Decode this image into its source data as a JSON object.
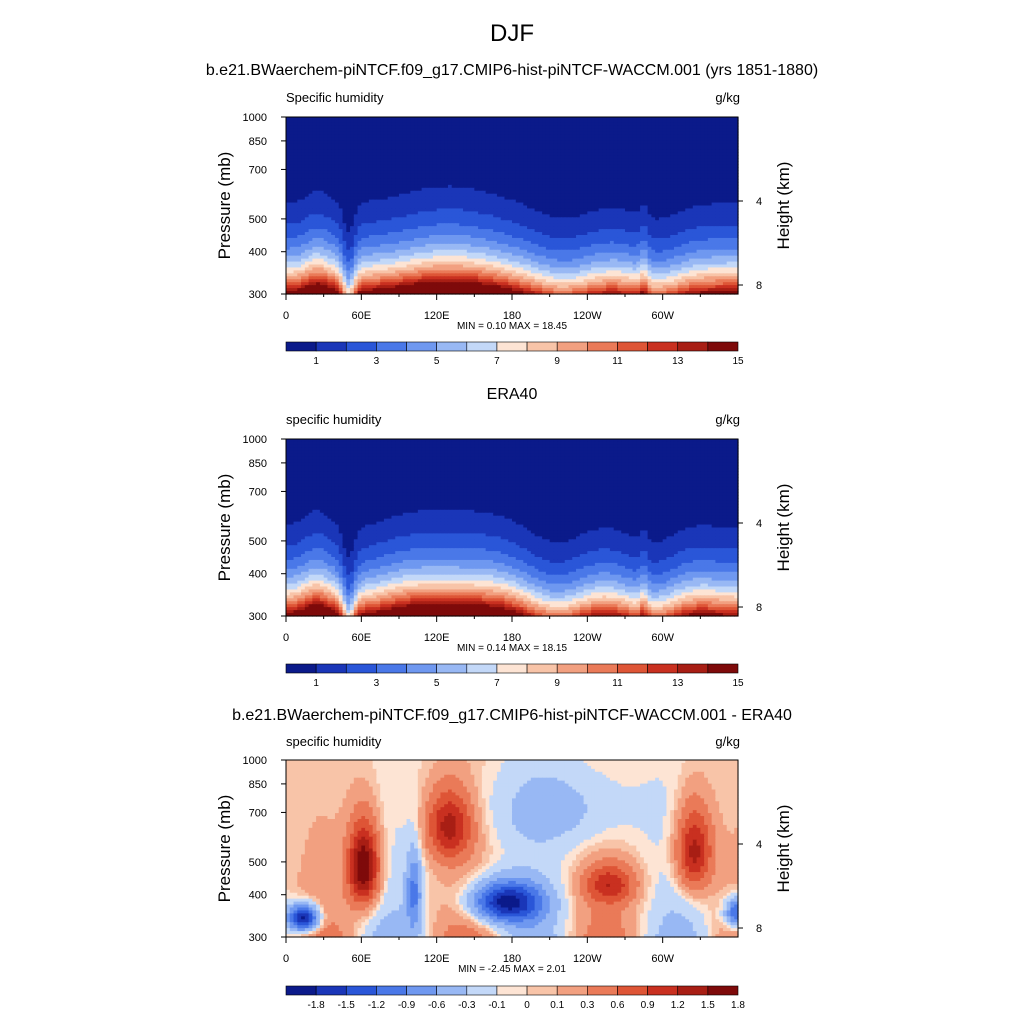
{
  "figure": {
    "title": "DJF",
    "colors": {
      "seq": [
        "#0b1a8a",
        "#1a36b8",
        "#2a56d8",
        "#4a78e8",
        "#6f98f0",
        "#98b8f4",
        "#c3d8f8",
        "#fde4d4",
        "#f8c4a8",
        "#f2a080",
        "#ea7a58",
        "#de5536",
        "#c93020",
        "#a81e14",
        "#7e0a0a"
      ],
      "diff": [
        "#0b1a8a",
        "#1a36b8",
        "#2a56d8",
        "#4a78e8",
        "#6f98f0",
        "#98b8f4",
        "#c3d8f8",
        "#fde4d4",
        "#f8c4a8",
        "#f2a080",
        "#ea7a58",
        "#de5536",
        "#c93020",
        "#a81e14",
        "#7e0a0a"
      ],
      "land": "#000000"
    }
  },
  "chart_data": [
    {
      "type": "heatmap",
      "title": "b.e21.BWaerchem-piNTCF.f09_g17.CMIP6-hist-piNTCF-WACCM.001 (yrs 1851-1880)",
      "left_label": "Specific humidity",
      "units": "g/kg",
      "ylabel": "Pressure (mb)",
      "ylabel_right": "Height (km)",
      "y_ticks": [
        "300",
        "400",
        "500",
        "700",
        "850",
        "1000"
      ],
      "y_tick_values": [
        300,
        400,
        500,
        700,
        850,
        1000
      ],
      "right_ticks": [
        "8",
        "4"
      ],
      "right_tick_values": [
        8,
        4
      ],
      "x_ticks": [
        "0",
        "60E",
        "120E",
        "180",
        "120W",
        "60W"
      ],
      "x_tick_values": [
        0,
        60,
        120,
        180,
        240,
        300
      ],
      "xlim": [
        0,
        360
      ],
      "ylim": [
        300,
        1000
      ],
      "min_max": "MIN =   0.10  MAX =  18.45",
      "colorbar_labels": [
        "1",
        "3",
        "5",
        "7",
        "9",
        "11",
        "13",
        "15"
      ],
      "field": "specific_humidity",
      "has_land": true
    },
    {
      "type": "heatmap",
      "title": "ERA40",
      "left_label": "specific humidity",
      "units": "g/kg",
      "ylabel": "Pressure (mb)",
      "ylabel_right": "Height (km)",
      "y_ticks": [
        "300",
        "400",
        "500",
        "700",
        "850",
        "1000"
      ],
      "y_tick_values": [
        300,
        400,
        500,
        700,
        850,
        1000
      ],
      "right_ticks": [
        "8",
        "4"
      ],
      "right_tick_values": [
        8,
        4
      ],
      "x_ticks": [
        "0",
        "60E",
        "120E",
        "180",
        "120W",
        "60W"
      ],
      "x_tick_values": [
        0,
        60,
        120,
        180,
        240,
        300
      ],
      "xlim": [
        0,
        360
      ],
      "ylim": [
        300,
        1000
      ],
      "min_max": "MIN =   0.14  MAX =  18.15",
      "colorbar_labels": [
        "1",
        "3",
        "5",
        "7",
        "9",
        "11",
        "13",
        "15"
      ],
      "field": "specific_humidity",
      "has_land": false
    },
    {
      "type": "heatmap",
      "title": "b.e21.BWaerchem-piNTCF.f09_g17.CMIP6-hist-piNTCF-WACCM.001 - ERA40",
      "left_label": "specific humidity",
      "units": "g/kg",
      "ylabel": "Pressure (mb)",
      "ylabel_right": "Height (km)",
      "y_ticks": [
        "300",
        "400",
        "500",
        "700",
        "850",
        "1000"
      ],
      "y_tick_values": [
        300,
        400,
        500,
        700,
        850,
        1000
      ],
      "right_ticks": [
        "8",
        "4"
      ],
      "right_tick_values": [
        8,
        4
      ],
      "x_ticks": [
        "0",
        "60E",
        "120E",
        "180",
        "120W",
        "60W"
      ],
      "x_tick_values": [
        0,
        60,
        120,
        180,
        240,
        300
      ],
      "xlim": [
        0,
        360
      ],
      "ylim": [
        300,
        1000
      ],
      "min_max": "MIN =  -2.45  MAX =   2.01",
      "colorbar_labels": [
        "-1.8",
        "-1.5",
        "-1.2",
        "-0.9",
        "-0.6",
        "-0.3",
        "-0.1",
        "0",
        "0.1",
        "0.3",
        "0.6",
        "0.9",
        "1.2",
        "1.5",
        "1.8"
      ],
      "field": "difference",
      "has_land": true
    }
  ]
}
